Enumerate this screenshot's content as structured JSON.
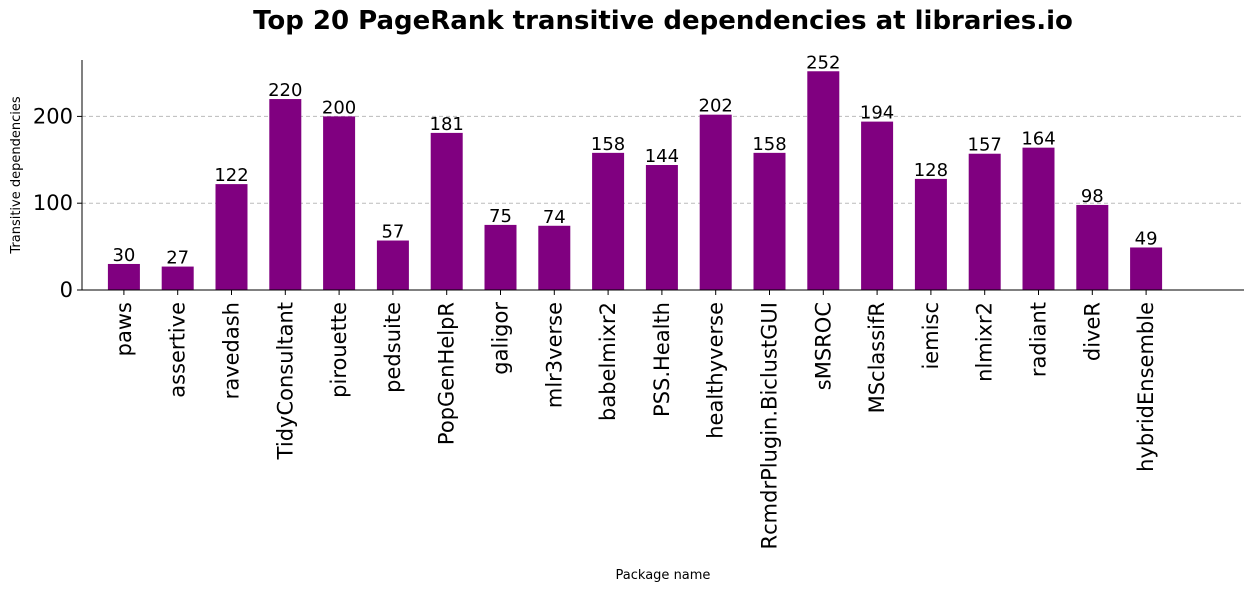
{
  "chart_data": {
    "type": "bar",
    "title": "Top 20 PageRank transitive dependencies at libraries.io",
    "xlabel": "Package name",
    "ylabel": "Transitive dependencies",
    "categories": [
      "paws",
      "assertive",
      "ravedash",
      "TidyConsultant",
      "pirouette",
      "pedsuite",
      "PopGenHelpR",
      "galigor",
      "mlr3verse",
      "babelmixr2",
      "PSS.Health",
      "healthyverse",
      "RcmdrPlugin.BiclustGUI",
      "sMSROC",
      "MSclassifR",
      "iemisc",
      "nlmixr2",
      "radiant",
      "diveR",
      "hybridEnsemble"
    ],
    "values": [
      30,
      27,
      122,
      220,
      200,
      57,
      181,
      75,
      74,
      158,
      144,
      202,
      158,
      252,
      194,
      128,
      157,
      164,
      98,
      49
    ],
    "yticks": [
      0,
      100,
      200
    ],
    "ylim": [
      0,
      265
    ],
    "grid": "y dashed",
    "bar_color": "#800080",
    "data_labels": true
  }
}
